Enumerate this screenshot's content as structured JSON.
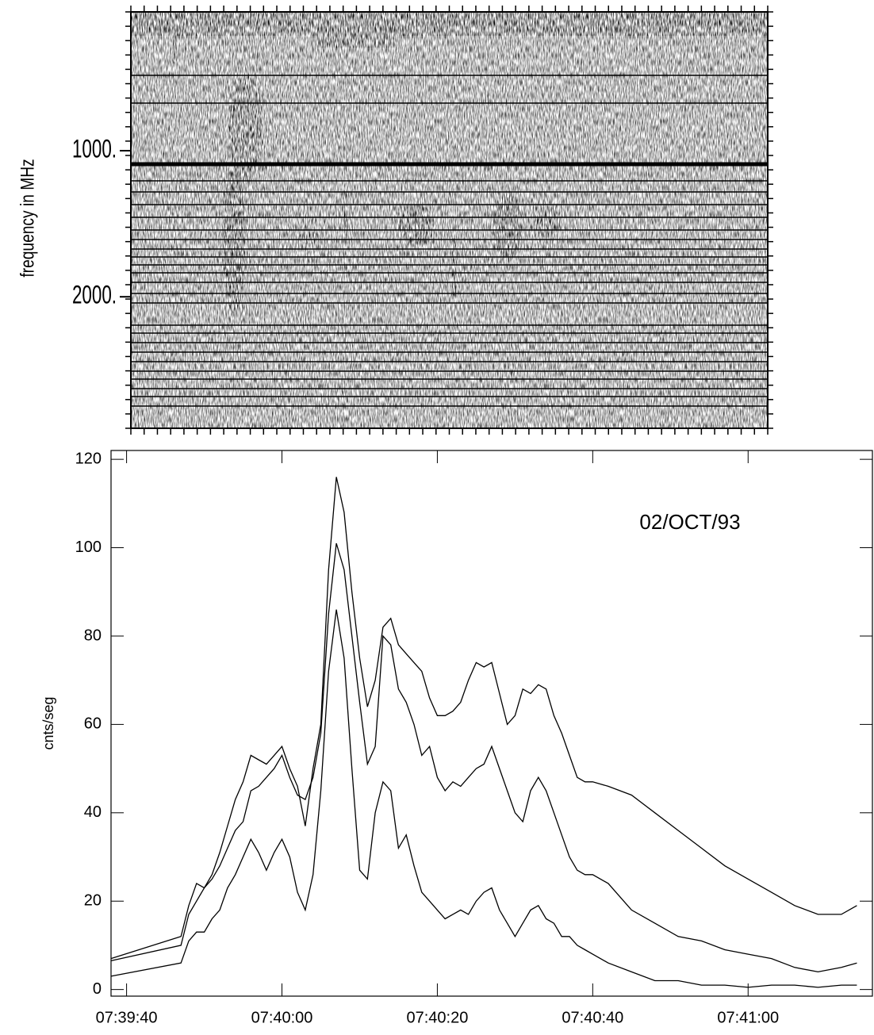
{
  "chart_data": [
    {
      "type": "spectrogram",
      "ylabel": "frequency in MHz",
      "ylim": [
        50,
        2900
      ],
      "y_inverted": true,
      "yticks": [
        {
          "value": 1000,
          "label": "1000."
        },
        {
          "value": 2000,
          "label": "2000."
        }
      ]
    },
    {
      "type": "line",
      "ylabel": "cnts/seg",
      "annotation": "02/OCT/93",
      "x": [
        27578,
        27587,
        27588,
        27589,
        27590,
        27591,
        27592,
        27593,
        27594,
        27595,
        27596,
        27597,
        27598,
        27599,
        27600,
        27601,
        27602,
        27603,
        27604,
        27605,
        27606,
        27607,
        27608,
        27609,
        27610,
        27611,
        27612,
        27613,
        27614,
        27615,
        27616,
        27617,
        27618,
        27619,
        27620,
        27621,
        27622,
        27623,
        27624,
        27625,
        27626,
        27627,
        27628,
        27629,
        27630,
        27631,
        27632,
        27633,
        27634,
        27635,
        27636,
        27637,
        27638,
        27639,
        27640,
        27642,
        27645,
        27648,
        27651,
        27654,
        27657,
        27660,
        27663,
        27666,
        27669,
        27672,
        27674
      ],
      "xlim": [
        27578,
        27676
      ],
      "xticks": [
        {
          "value": 27580,
          "label": "07:39:40"
        },
        {
          "value": 27600,
          "label": "07:40:00"
        },
        {
          "value": 27620,
          "label": "07:40:20"
        },
        {
          "value": 27640,
          "label": "07:40:40"
        },
        {
          "value": 27660,
          "label": "07:41:00"
        }
      ],
      "ylim": [
        -1.5,
        122
      ],
      "yticks": [
        0,
        20,
        40,
        60,
        80,
        100,
        120
      ],
      "series": [
        {
          "color": "#000000",
          "values": [
            7,
            12,
            19,
            24,
            23,
            26,
            31,
            37,
            43,
            47,
            53,
            52,
            51,
            53,
            55,
            50,
            46,
            37,
            50,
            60,
            95,
            116,
            108,
            90,
            75,
            64,
            70,
            82,
            84,
            78,
            76,
            74,
            72,
            66,
            62,
            62,
            63,
            65,
            70,
            74,
            73,
            74,
            67,
            60,
            62,
            68,
            67,
            69,
            68,
            62,
            58,
            53,
            48,
            47,
            47,
            46,
            44,
            40,
            36,
            32,
            28,
            25,
            22,
            19,
            17,
            17,
            19
          ]
        },
        {
          "color": "#000000",
          "values": [
            6.5,
            10,
            17,
            20,
            23,
            25,
            28,
            32,
            36,
            38,
            45,
            46,
            48,
            50,
            53,
            48,
            44,
            43,
            48,
            58,
            85,
            101,
            95,
            80,
            65,
            51,
            55,
            80,
            78,
            68,
            65,
            60,
            53,
            55,
            48,
            45,
            47,
            46,
            48,
            50,
            51,
            55,
            50,
            45,
            40,
            38,
            45,
            48,
            45,
            40,
            35,
            30,
            27,
            26,
            26,
            24,
            18,
            15,
            12,
            11,
            9,
            8,
            7,
            5,
            4,
            5,
            6
          ]
        },
        {
          "color": "#000000",
          "values": [
            3,
            6,
            11,
            13,
            13,
            16,
            18,
            23,
            26,
            30,
            34,
            31,
            27,
            31,
            34,
            30,
            22,
            18,
            26,
            45,
            72,
            86,
            75,
            50,
            27,
            25,
            40,
            47,
            45,
            32,
            35,
            28,
            22,
            20,
            18,
            16,
            17,
            18,
            17,
            20,
            22,
            23,
            18,
            15,
            12,
            15,
            18,
            19,
            16,
            15,
            12,
            12,
            10,
            9,
            8,
            6,
            4,
            2,
            2,
            1,
            1,
            0.5,
            1,
            1,
            0.5,
            1,
            1
          ]
        }
      ]
    }
  ]
}
